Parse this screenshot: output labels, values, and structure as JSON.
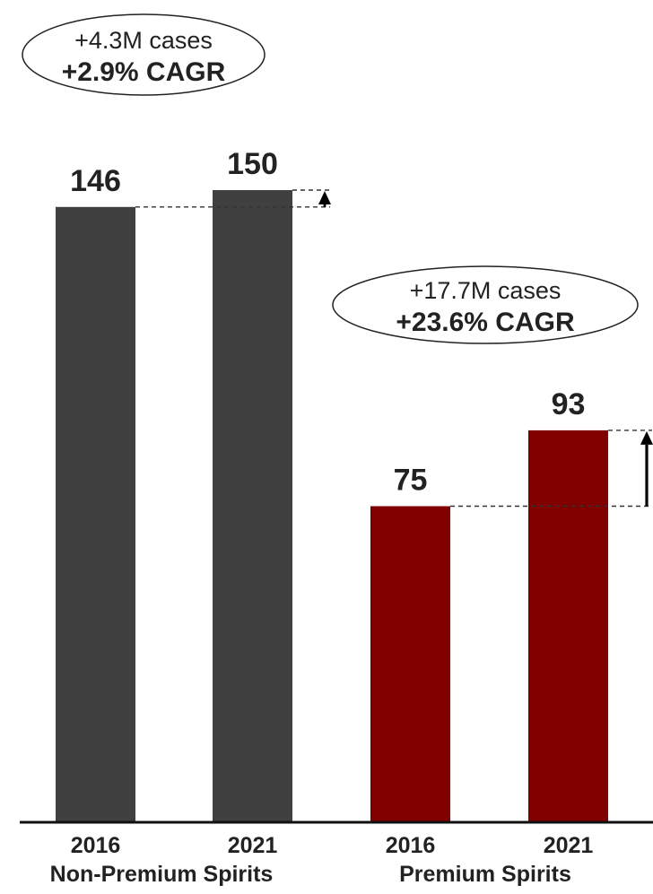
{
  "chart_data": {
    "type": "bar",
    "title": "",
    "xlabel": "",
    "ylabel": "",
    "ylim": [
      0,
      150
    ],
    "grid": false,
    "legend": "none",
    "groups": [
      {
        "name": "Non-Premium Spirits",
        "color": "#404040",
        "categories": [
          "2016",
          "2021"
        ],
        "values": [
          146,
          150
        ],
        "annotation": {
          "line1": "+4.3M cases",
          "line2": "+2.9% CAGR"
        }
      },
      {
        "name": "Premium Spirits",
        "color": "#800000",
        "categories": [
          "2016",
          "2021"
        ],
        "values": [
          75,
          93
        ],
        "annotation": {
          "line1": "+17.7M cases",
          "line2": "+23.6% CAGR"
        }
      }
    ]
  }
}
